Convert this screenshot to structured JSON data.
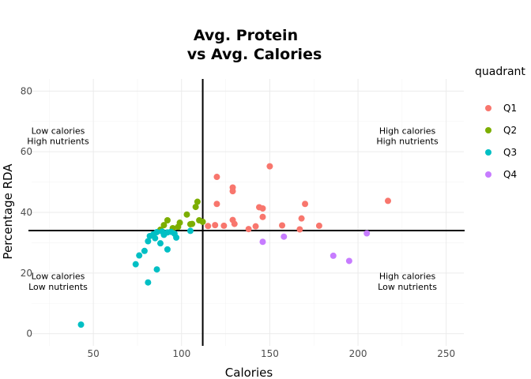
{
  "chart_data": {
    "type": "scatter",
    "title_line1": "Avg. Protein",
    "title_line2": "vs Avg. Calories",
    "xlabel": "Calories",
    "ylabel": "Percentage RDA",
    "xlim": [
      15,
      260
    ],
    "ylim": [
      -4,
      84
    ],
    "xticks": [
      50,
      100,
      150,
      200,
      250
    ],
    "yticks": [
      0,
      20,
      40,
      60,
      80
    ],
    "grid": true,
    "vline": 112,
    "hline": 34,
    "legend": {
      "title": "quadrant",
      "position": "right",
      "entries": [
        {
          "label": "Q1",
          "color": "#F8766D"
        },
        {
          "label": "Q2",
          "color": "#7CAE00"
        },
        {
          "label": "Q3",
          "color": "#00BFC4"
        },
        {
          "label": "Q4",
          "color": "#C77CFF"
        }
      ]
    },
    "annotations": [
      {
        "line1": "Low calories",
        "line2": "High nutrients",
        "x": 30,
        "y1": 67,
        "y2": 63.5
      },
      {
        "line1": "High calories",
        "line2": "High nutrients",
        "x": 228,
        "y1": 67,
        "y2": 63.5
      },
      {
        "line1": "Low calories",
        "line2": "Low nutrients",
        "x": 30,
        "y1": 19,
        "y2": 15.5
      },
      {
        "line1": "High calories",
        "line2": "Low nutrients",
        "x": 228,
        "y1": 19,
        "y2": 15.5
      }
    ],
    "series": [
      {
        "name": "Q1",
        "color": "#F8766D",
        "points": [
          [
            115,
            35.5
          ],
          [
            119,
            35.8
          ],
          [
            120,
            42.8
          ],
          [
            120,
            51.7
          ],
          [
            124,
            35.6
          ],
          [
            129,
            48.2
          ],
          [
            129,
            47.0
          ],
          [
            129,
            37.5
          ],
          [
            130,
            36.2
          ],
          [
            138,
            34.5
          ],
          [
            142,
            35.4
          ],
          [
            144,
            41.7
          ],
          [
            146,
            41.3
          ],
          [
            146,
            38.5
          ],
          [
            150,
            55.2
          ],
          [
            157,
            35.7
          ],
          [
            167,
            34.4
          ],
          [
            168,
            38.0
          ],
          [
            170,
            42.8
          ],
          [
            178,
            35.6
          ],
          [
            217,
            43.8
          ]
        ]
      },
      {
        "name": "Q2",
        "color": "#7CAE00",
        "points": [
          [
            88,
            34.3
          ],
          [
            90,
            35.8
          ],
          [
            92,
            37.4
          ],
          [
            95,
            34.8
          ],
          [
            99,
            36.6
          ],
          [
            103,
            39.3
          ],
          [
            106,
            36.2
          ],
          [
            108,
            41.8
          ],
          [
            109,
            43.5
          ],
          [
            110,
            37.4
          ],
          [
            112,
            36.9
          ],
          [
            105,
            36.1
          ],
          [
            98,
            35.2
          ]
        ]
      },
      {
        "name": "Q3",
        "color": "#00BFC4",
        "points": [
          [
            43,
            3.0
          ],
          [
            74,
            22.9
          ],
          [
            76,
            25.8
          ],
          [
            79,
            27.3
          ],
          [
            81,
            16.9
          ],
          [
            81,
            30.5
          ],
          [
            82,
            32.2
          ],
          [
            84,
            32.8
          ],
          [
            85,
            31.5
          ],
          [
            86,
            21.2
          ],
          [
            86,
            33.5
          ],
          [
            88,
            29.8
          ],
          [
            89,
            33.7
          ],
          [
            90,
            32.6
          ],
          [
            92,
            27.8
          ],
          [
            92,
            33.4
          ],
          [
            94,
            33.6
          ],
          [
            96,
            33.0
          ],
          [
            97,
            31.7
          ],
          [
            105,
            33.9
          ]
        ]
      },
      {
        "name": "Q4",
        "color": "#C77CFF",
        "points": [
          [
            146,
            30.3
          ],
          [
            158,
            32.0
          ],
          [
            186,
            25.7
          ],
          [
            195,
            24.0
          ],
          [
            205,
            33.1
          ]
        ]
      }
    ]
  }
}
